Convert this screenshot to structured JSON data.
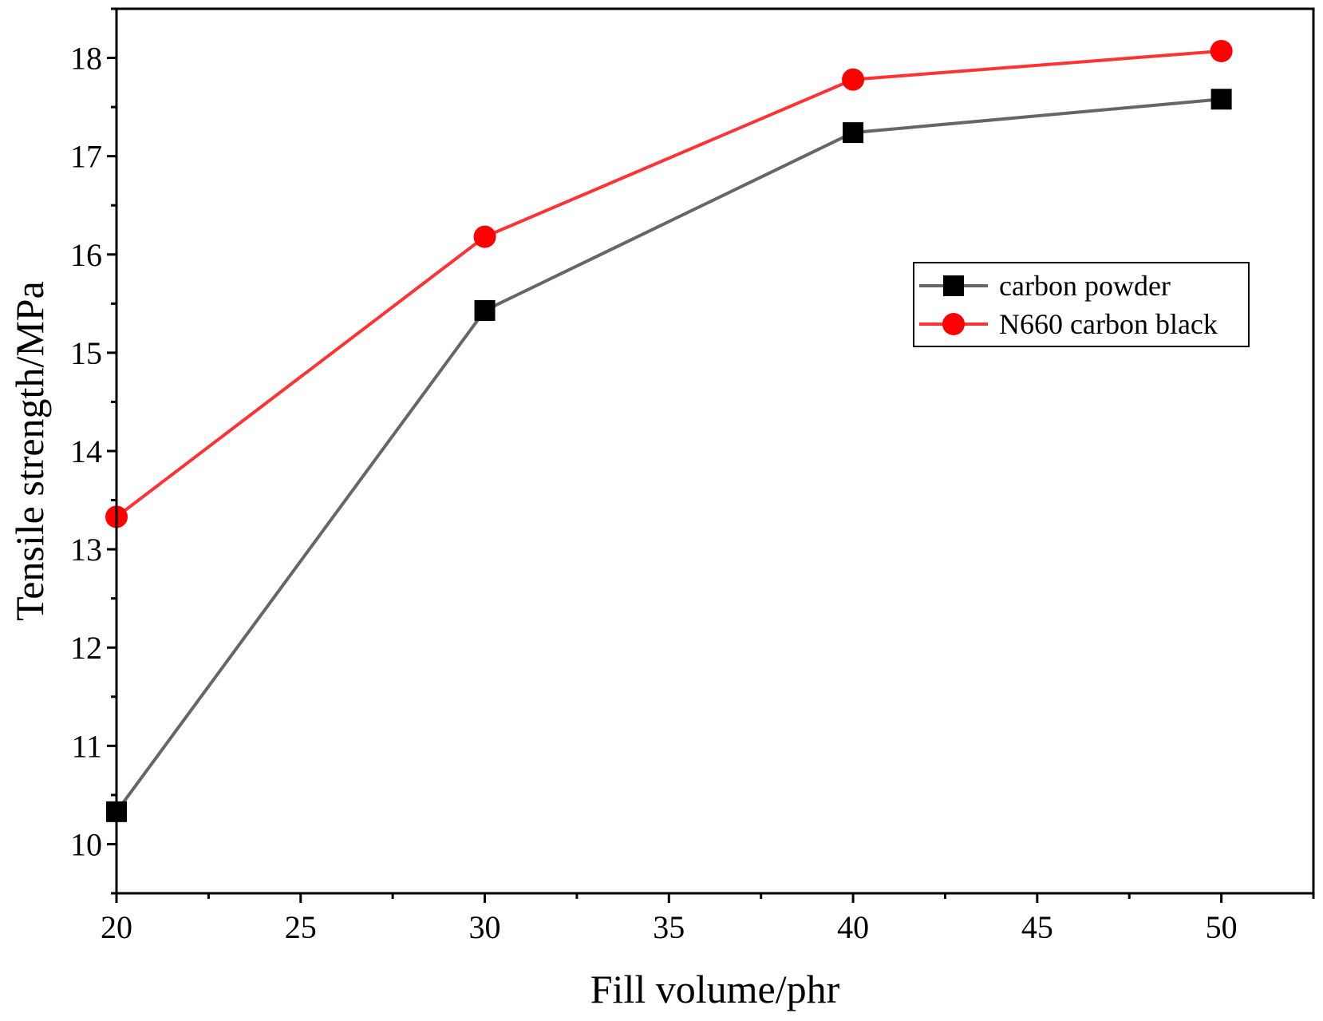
{
  "chart_data": {
    "type": "line",
    "title": "",
    "xlabel": "Fill volume/phr",
    "ylabel": "Tensile strength/MPa",
    "xlim": [
      20,
      52.5
    ],
    "ylim": [
      9.5,
      18.5
    ],
    "xticks": [
      20,
      25,
      30,
      35,
      40,
      45,
      50
    ],
    "yticks": [
      10,
      11,
      12,
      13,
      14,
      15,
      16,
      17,
      18
    ],
    "x": [
      20,
      30,
      40,
      50
    ],
    "series": [
      {
        "name": "carbon powder",
        "values": [
          10.33,
          15.43,
          17.24,
          17.58
        ],
        "line_color": "#666666",
        "marker": "square",
        "marker_color": "#000000"
      },
      {
        "name": "N660 carbon black",
        "values": [
          13.33,
          16.18,
          17.78,
          18.07
        ],
        "line_color": "#ff3333",
        "marker": "circle",
        "marker_color": "#ff0000"
      }
    ],
    "legend": "upper-right",
    "grid": false
  }
}
